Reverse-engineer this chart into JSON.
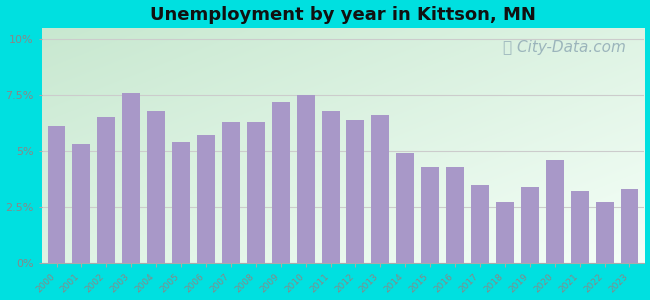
{
  "title": "Unemployment by year in Kittson, MN",
  "years": [
    2000,
    2001,
    2002,
    2003,
    2004,
    2005,
    2006,
    2007,
    2008,
    2009,
    2010,
    2011,
    2012,
    2013,
    2014,
    2015,
    2016,
    2017,
    2018,
    2019,
    2020,
    2021,
    2022,
    2023
  ],
  "values": [
    6.1,
    5.3,
    6.5,
    7.6,
    6.8,
    5.4,
    5.7,
    6.3,
    6.3,
    7.2,
    7.5,
    6.8,
    6.4,
    6.6,
    4.9,
    4.3,
    4.3,
    3.5,
    2.7,
    3.4,
    4.6,
    3.2,
    2.7,
    3.3
  ],
  "bar_color": "#a898c8",
  "background_outer": "#00e0e0",
  "bg_color_top_left": "#c8e8d0",
  "bg_color_bottom_right": "#f5fff8",
  "ytick_labels": [
    "0%",
    "2.5%",
    "5%",
    "7.5%",
    "10%"
  ],
  "ytick_values": [
    0,
    2.5,
    5.0,
    7.5,
    10.0
  ],
  "ylim": [
    0,
    10.5
  ],
  "title_fontsize": 13,
  "watermark_text": "City-Data.com",
  "watermark_color": "#90aab5",
  "watermark_fontsize": 11,
  "tick_color": "#888888",
  "grid_color": "#cccccc"
}
